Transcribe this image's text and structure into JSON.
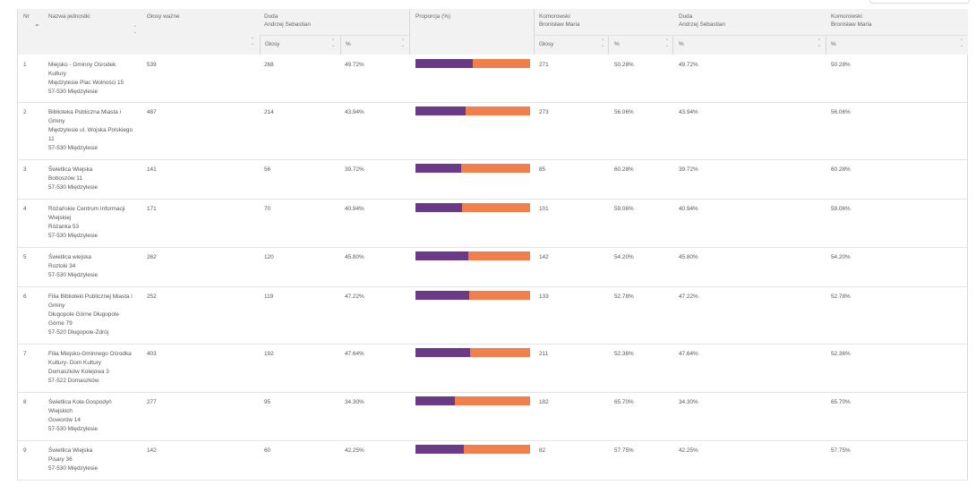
{
  "header": {
    "nr": "Nr",
    "name": "Nazwa jednostki",
    "valid": "Głosy ważne",
    "cand1_line1": "Duda",
    "cand1_line2": "Andrzej Sebastian",
    "proportion": "Proporcja (%)",
    "cand2_line1": "Komorowski",
    "cand2_line2": "Bronisław Maria",
    "cand1b_line1": "Duda",
    "cand1b_line2": "Andrzej Sebastian",
    "cand2b_line1": "Komorowski",
    "cand2b_line2": "Bronisław Maria",
    "votes_sub": "Głosy",
    "pct_sub": "%",
    "votes_sub2": "Głosy",
    "pct_sub2": "%",
    "pct_sub3": "%",
    "pct_sub4": "%"
  },
  "colors": {
    "duda": "#6b3a87",
    "komorowski": "#f07f4d"
  },
  "rows": [
    {
      "nr": "1",
      "name": [
        "Miejsko - Gminny Ośrodek",
        "Kultury",
        "Międzylesie Plac Wolności 15",
        "57-530 Międzylesie"
      ],
      "valid": "539",
      "duda_votes": "268",
      "duda_pct": "49.72%",
      "kom_votes": "271",
      "kom_pct": "50.28%",
      "duda_pct2": "49.72%",
      "kom_pct2": "50.28%",
      "duda_share": 49.72
    },
    {
      "nr": "2",
      "name": [
        "Biblioteka Publiczna Miasta i",
        "Gminy",
        "Międzylesie ul. Wojska Polskiego",
        "11",
        "57-530 Międzylesie"
      ],
      "valid": "487",
      "duda_votes": "214",
      "duda_pct": "43.94%",
      "kom_votes": "273",
      "kom_pct": "56.06%",
      "duda_pct2": "43.94%",
      "kom_pct2": "56.06%",
      "duda_share": 43.94
    },
    {
      "nr": "3",
      "name": [
        "Świetlica Wiejska",
        "Boboszów 11",
        "57-530 Międzylesie"
      ],
      "valid": "141",
      "duda_votes": "56",
      "duda_pct": "39.72%",
      "kom_votes": "85",
      "kom_pct": "60.28%",
      "duda_pct2": "39.72%",
      "kom_pct2": "60.28%",
      "duda_share": 39.72
    },
    {
      "nr": "4",
      "name": [
        "Różańskie Centrum Informacji",
        "Wiejskiej",
        "Różanka 53",
        "57-530 Międzylesie"
      ],
      "valid": "171",
      "duda_votes": "70",
      "duda_pct": "40.94%",
      "kom_votes": "101",
      "kom_pct": "59.06%",
      "duda_pct2": "40.94%",
      "kom_pct2": "59.06%",
      "duda_share": 40.94
    },
    {
      "nr": "5",
      "name": [
        "Świetlica wiejska",
        "Roztoki 34",
        "57-530 Międzylesie"
      ],
      "valid": "262",
      "duda_votes": "120",
      "duda_pct": "45.80%",
      "kom_votes": "142",
      "kom_pct": "54.20%",
      "duda_pct2": "45.80%",
      "kom_pct2": "54.20%",
      "duda_share": 45.8
    },
    {
      "nr": "6",
      "name": [
        "Filia Biblioteki Publicznej Miasta i",
        "Gminy",
        "Długopole Górne Długopole",
        "Górne 79",
        "57-520 Długopole-Zdrój"
      ],
      "valid": "252",
      "duda_votes": "119",
      "duda_pct": "47.22%",
      "kom_votes": "133",
      "kom_pct": "52.78%",
      "duda_pct2": "47.22%",
      "kom_pct2": "52.78%",
      "duda_share": 47.22
    },
    {
      "nr": "7",
      "name": [
        "Filia Miejsko-Gminnego Ośrodka",
        "Kultury- Dom Kultury",
        "Domaszków Kolejowa 3",
        "57-522 Domaszków"
      ],
      "valid": "403",
      "duda_votes": "192",
      "duda_pct": "47.64%",
      "kom_votes": "211",
      "kom_pct": "52.36%",
      "duda_pct2": "47.64%",
      "kom_pct2": "52.36%",
      "duda_share": 47.64
    },
    {
      "nr": "8",
      "name": [
        "Świetlica Koła Gospodyń",
        "Wiejskich",
        "Goworów 14",
        "57-530 Międzylesie"
      ],
      "valid": "277",
      "duda_votes": "95",
      "duda_pct": "34.30%",
      "kom_votes": "182",
      "kom_pct": "65.70%",
      "duda_pct2": "34.30%",
      "kom_pct2": "65.70%",
      "duda_share": 34.3
    },
    {
      "nr": "9",
      "name": [
        "Świetlica Wiejska",
        "Pisary 36",
        "57-530 Międzylesie"
      ],
      "valid": "142",
      "duda_votes": "60",
      "duda_pct": "42.25%",
      "kom_votes": "82",
      "kom_pct": "57.75%",
      "duda_pct2": "42.25%",
      "kom_pct2": "57.75%",
      "duda_share": 42.25
    }
  ]
}
